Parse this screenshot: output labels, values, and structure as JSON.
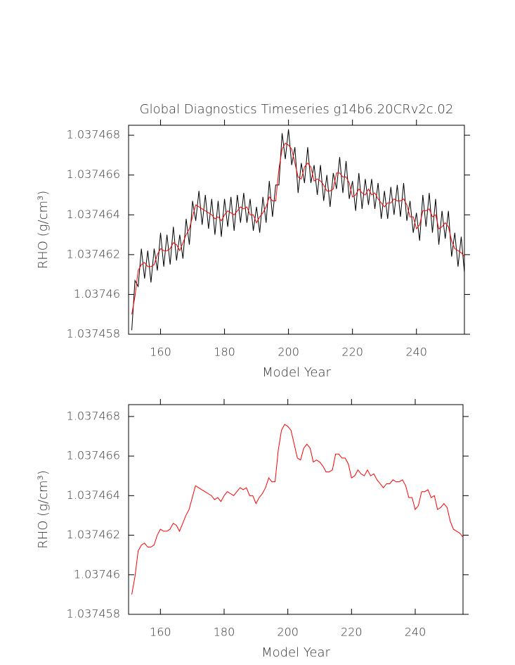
{
  "chart_data": [
    {
      "type": "line",
      "title": "Global Diagnostics Timeseries g14b6.20CRv2c.02",
      "x_label": "Model Year",
      "y_label": "RHO (g/cm³)",
      "xlim": [
        150,
        255
      ],
      "xticks": [
        160,
        180,
        200,
        220,
        240
      ],
      "ylim": [
        1.037458,
        1.0374685
      ],
      "yticks": [
        1.037458,
        1.03746,
        1.037462,
        1.037464,
        1.037466,
        1.037468
      ],
      "x": [
        151,
        152,
        153,
        154,
        155,
        156,
        157,
        158,
        159,
        160,
        161,
        162,
        163,
        164,
        165,
        166,
        167,
        168,
        169,
        170,
        171,
        172,
        173,
        174,
        175,
        176,
        177,
        178,
        179,
        180,
        181,
        182,
        183,
        184,
        185,
        186,
        187,
        188,
        189,
        190,
        191,
        192,
        193,
        194,
        195,
        196,
        197,
        198,
        199,
        200,
        201,
        202,
        203,
        204,
        205,
        206,
        207,
        208,
        209,
        210,
        211,
        212,
        213,
        214,
        215,
        216,
        217,
        218,
        219,
        220,
        221,
        222,
        223,
        224,
        225,
        226,
        227,
        228,
        229,
        230,
        231,
        232,
        233,
        234,
        235,
        236,
        237,
        238,
        239,
        240,
        241,
        242,
        243,
        244,
        245,
        246,
        247,
        248,
        249,
        250,
        251,
        252,
        253,
        254,
        255
      ],
      "series": [
        {
          "color": "#000000",
          "values": [
            1.0374582,
            1.0374607,
            1.0374604,
            1.0374623,
            1.0374608,
            1.0374622,
            1.0374606,
            1.0374623,
            1.0374612,
            1.0374631,
            1.0374614,
            1.037463,
            1.0374615,
            1.0374634,
            1.0374617,
            1.037463,
            1.0374618,
            1.0374638,
            1.0374625,
            1.0374647,
            1.0374637,
            1.0374652,
            1.0374635,
            1.037465,
            1.0374633,
            1.0374648,
            1.037463,
            1.0374647,
            1.0374629,
            1.0374648,
            1.0374634,
            1.0374649,
            1.0374632,
            1.037465,
            1.0374636,
            1.0374651,
            1.0374636,
            1.0374648,
            1.0374632,
            1.0374644,
            1.0374631,
            1.0374649,
            1.0374636,
            1.0374657,
            1.0374639,
            1.0374655,
            1.0374655,
            1.0374681,
            1.0374668,
            1.0374683,
            1.0374665,
            1.0374674,
            1.0374651,
            1.0374666,
            1.0374656,
            1.0374674,
            1.0374656,
            1.0374665,
            1.037465,
            1.0374665,
            1.0374647,
            1.037466,
            1.0374644,
            1.0374661,
            1.0374653,
            1.0374669,
            1.0374651,
            1.0374667,
            1.0374648,
            1.0374657,
            1.0374642,
            1.0374661,
            1.0374643,
            1.0374658,
            1.0374645,
            1.0374658,
            1.0374643,
            1.0374656,
            1.0374638,
            1.0374652,
            1.0374638,
            1.0374654,
            1.037464,
            1.0374655,
            1.0374639,
            1.0374656,
            1.0374637,
            1.0374647,
            1.0374631,
            1.0374641,
            1.0374627,
            1.037465,
            1.0374634,
            1.0374651,
            1.0374631,
            1.0374648,
            1.0374625,
            1.0374642,
            1.0374628,
            1.0374642,
            1.0374619,
            1.0374631,
            1.0374614,
            1.0374629,
            1.0374611
          ]
        },
        {
          "color": "#ff0000",
          "values": [
            1.037459,
            1.0374599,
            1.0374612,
            1.0374615,
            1.0374616,
            1.0374614,
            1.0374614,
            1.0374615,
            1.037462,
            1.0374623,
            1.0374622,
            1.0374622,
            1.0374623,
            1.0374626,
            1.0374625,
            1.0374622,
            1.0374626,
            1.037463,
            1.0374633,
            1.0374639,
            1.0374645,
            1.0374644,
            1.0374643,
            1.0374642,
            1.0374641,
            1.037464,
            1.0374638,
            1.0374639,
            1.0374637,
            1.037464,
            1.0374642,
            1.0374641,
            1.037464,
            1.0374642,
            1.0374644,
            1.0374643,
            1.0374644,
            1.037464,
            1.037464,
            1.0374636,
            1.0374639,
            1.0374641,
            1.0374644,
            1.0374649,
            1.0374647,
            1.0374647,
            1.0374663,
            1.0374673,
            1.0374676,
            1.0374675,
            1.0374673,
            1.0374666,
            1.0374659,
            1.0374658,
            1.0374664,
            1.0374666,
            1.0374664,
            1.0374657,
            1.0374658,
            1.0374657,
            1.0374655,
            1.0374652,
            1.0374652,
            1.0374653,
            1.0374661,
            1.0374661,
            1.0374659,
            1.0374659,
            1.0374656,
            1.0374649,
            1.037465,
            1.0374653,
            1.0374651,
            1.037465,
            1.0374653,
            1.037465,
            1.0374651,
            1.0374648,
            1.0374646,
            1.0374644,
            1.0374646,
            1.0374646,
            1.0374648,
            1.0374647,
            1.0374647,
            1.0374648,
            1.0374645,
            1.0374639,
            1.0374639,
            1.0374633,
            1.0374635,
            1.0374642,
            1.0374642,
            1.0374643,
            1.0374639,
            1.037464,
            1.0374633,
            1.0374634,
            1.0374636,
            1.0374634,
            1.0374627,
            1.0374623,
            1.0374622,
            1.0374621,
            1.0374619
          ]
        }
      ]
    },
    {
      "type": "line",
      "x_label": "Model Year",
      "y_label": "RHO (g/cm³)",
      "xlim": [
        150,
        255
      ],
      "xticks": [
        160,
        180,
        200,
        220,
        240
      ],
      "ylim": [
        1.037458,
        1.0374686
      ],
      "yticks": [
        1.037458,
        1.03746,
        1.037462,
        1.037464,
        1.037466,
        1.037468
      ],
      "x": [
        151,
        152,
        153,
        154,
        155,
        156,
        157,
        158,
        159,
        160,
        161,
        162,
        163,
        164,
        165,
        166,
        167,
        168,
        169,
        170,
        171,
        172,
        173,
        174,
        175,
        176,
        177,
        178,
        179,
        180,
        181,
        182,
        183,
        184,
        185,
        186,
        187,
        188,
        189,
        190,
        191,
        192,
        193,
        194,
        195,
        196,
        197,
        198,
        199,
        200,
        201,
        202,
        203,
        204,
        205,
        206,
        207,
        208,
        209,
        210,
        211,
        212,
        213,
        214,
        215,
        216,
        217,
        218,
        219,
        220,
        221,
        222,
        223,
        224,
        225,
        226,
        227,
        228,
        229,
        230,
        231,
        232,
        233,
        234,
        235,
        236,
        237,
        238,
        239,
        240,
        241,
        242,
        243,
        244,
        245,
        246,
        247,
        248,
        249,
        250,
        251,
        252,
        253,
        254,
        255
      ],
      "series": [
        {
          "color": "#ff0000",
          "values": [
            1.037459,
            1.0374599,
            1.0374612,
            1.0374615,
            1.0374616,
            1.0374614,
            1.0374614,
            1.0374615,
            1.037462,
            1.0374623,
            1.0374622,
            1.0374622,
            1.0374623,
            1.0374626,
            1.0374625,
            1.0374622,
            1.0374626,
            1.037463,
            1.0374633,
            1.0374639,
            1.0374645,
            1.0374644,
            1.0374643,
            1.0374642,
            1.0374641,
            1.037464,
            1.0374638,
            1.0374639,
            1.0374637,
            1.037464,
            1.0374642,
            1.0374641,
            1.037464,
            1.0374642,
            1.0374644,
            1.0374643,
            1.0374644,
            1.037464,
            1.037464,
            1.0374636,
            1.0374639,
            1.0374641,
            1.0374644,
            1.0374649,
            1.0374647,
            1.0374647,
            1.0374663,
            1.0374673,
            1.0374676,
            1.0374675,
            1.0374673,
            1.0374666,
            1.0374659,
            1.0374658,
            1.0374664,
            1.0374666,
            1.0374664,
            1.0374657,
            1.0374658,
            1.0374657,
            1.0374655,
            1.0374652,
            1.0374652,
            1.0374653,
            1.0374661,
            1.0374661,
            1.0374659,
            1.0374659,
            1.0374656,
            1.0374649,
            1.037465,
            1.0374653,
            1.0374651,
            1.037465,
            1.0374653,
            1.037465,
            1.0374651,
            1.0374648,
            1.0374646,
            1.0374644,
            1.0374646,
            1.0374646,
            1.0374648,
            1.0374647,
            1.0374647,
            1.0374648,
            1.0374645,
            1.0374639,
            1.0374639,
            1.0374633,
            1.0374635,
            1.0374642,
            1.0374642,
            1.0374643,
            1.0374639,
            1.037464,
            1.0374633,
            1.0374634,
            1.0374636,
            1.0374634,
            1.0374627,
            1.0374623,
            1.0374622,
            1.0374621,
            1.0374619
          ]
        }
      ]
    }
  ]
}
